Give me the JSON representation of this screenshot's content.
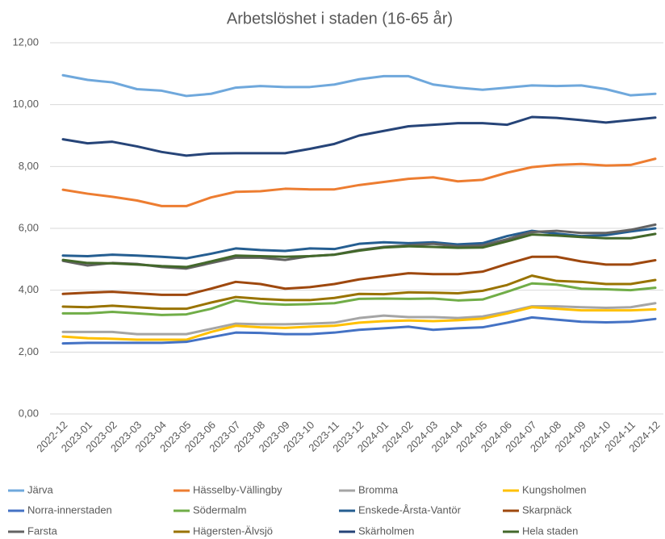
{
  "chart_data": {
    "type": "line",
    "title": "Arbetslöshet i staden (16-65 år)",
    "categories": [
      "2022-12",
      "2023-01",
      "2023-02",
      "2023-03",
      "2023-04",
      "2023-05",
      "2023-06",
      "2023-07",
      "2023-08",
      "2023-09",
      "2023-10",
      "2023-11",
      "2023-12",
      "2024-01",
      "2024-02",
      "2024-03",
      "2024-04",
      "2024-05",
      "2024-06",
      "2024-07",
      "2024-08",
      "2024-09",
      "2024-10",
      "2024-11",
      "2024-12"
    ],
    "ylim": [
      0,
      12
    ],
    "yticks": [
      {
        "value": 0,
        "label": "0,00"
      },
      {
        "value": 2,
        "label": "2,00"
      },
      {
        "value": 4,
        "label": "4,00"
      },
      {
        "value": 6,
        "label": "6,00"
      },
      {
        "value": 8,
        "label": "8,00"
      },
      {
        "value": 10,
        "label": "10,00"
      },
      {
        "value": 12,
        "label": "12,00"
      }
    ],
    "grid": true,
    "legend": "bottom",
    "series": [
      {
        "name": "Järva",
        "color": "#6fa8dc",
        "values": [
          10.95,
          10.8,
          10.72,
          10.5,
          10.45,
          10.28,
          10.35,
          10.55,
          10.6,
          10.57,
          10.57,
          10.65,
          10.82,
          10.92,
          10.92,
          10.65,
          10.55,
          10.48,
          10.55,
          10.62,
          10.6,
          10.62,
          10.5,
          10.3,
          10.35
        ]
      },
      {
        "name": "Hässelby-Vällingby",
        "color": "#ed7d31",
        "values": [
          7.25,
          7.12,
          7.02,
          6.9,
          6.72,
          6.72,
          7.0,
          7.18,
          7.2,
          7.28,
          7.26,
          7.26,
          7.4,
          7.5,
          7.6,
          7.65,
          7.52,
          7.57,
          7.8,
          7.98,
          8.05,
          8.08,
          8.03,
          8.05,
          8.25
        ]
      },
      {
        "name": "Bromma",
        "color": "#a5a5a5",
        "values": [
          2.65,
          2.65,
          2.65,
          2.58,
          2.58,
          2.58,
          2.75,
          2.92,
          2.9,
          2.9,
          2.92,
          2.95,
          3.1,
          3.18,
          3.13,
          3.13,
          3.1,
          3.15,
          3.3,
          3.48,
          3.48,
          3.45,
          3.43,
          3.45,
          3.58
        ]
      },
      {
        "name": "Kungsholmen",
        "color": "#ffc000",
        "values": [
          2.5,
          2.45,
          2.43,
          2.4,
          2.4,
          2.4,
          2.65,
          2.85,
          2.8,
          2.78,
          2.82,
          2.85,
          2.95,
          3.0,
          3.02,
          3.0,
          3.03,
          3.08,
          3.25,
          3.45,
          3.4,
          3.35,
          3.35,
          3.35,
          3.38
        ]
      },
      {
        "name": "Norra-innerstaden",
        "color": "#4472c4",
        "values": [
          2.28,
          2.3,
          2.3,
          2.3,
          2.3,
          2.33,
          2.48,
          2.63,
          2.62,
          2.58,
          2.58,
          2.63,
          2.72,
          2.77,
          2.82,
          2.72,
          2.77,
          2.8,
          2.95,
          3.12,
          3.05,
          2.98,
          2.96,
          2.98,
          3.07
        ]
      },
      {
        "name": "Södermalm",
        "color": "#70ad47",
        "values": [
          3.25,
          3.25,
          3.3,
          3.25,
          3.2,
          3.22,
          3.4,
          3.67,
          3.57,
          3.53,
          3.55,
          3.58,
          3.72,
          3.73,
          3.72,
          3.73,
          3.67,
          3.7,
          3.95,
          4.22,
          4.18,
          4.05,
          4.03,
          4.0,
          4.08
        ]
      },
      {
        "name": "Enskede-Årsta-Vantör",
        "color": "#255e91",
        "values": [
          5.12,
          5.1,
          5.15,
          5.12,
          5.08,
          5.03,
          5.18,
          5.35,
          5.3,
          5.27,
          5.35,
          5.33,
          5.5,
          5.55,
          5.52,
          5.55,
          5.48,
          5.52,
          5.75,
          5.92,
          5.83,
          5.75,
          5.78,
          5.9,
          6.0
        ]
      },
      {
        "name": "Skarpnäck",
        "color": "#9e480e",
        "values": [
          3.88,
          3.92,
          3.95,
          3.9,
          3.85,
          3.85,
          4.05,
          4.27,
          4.2,
          4.05,
          4.1,
          4.2,
          4.35,
          4.45,
          4.55,
          4.52,
          4.52,
          4.6,
          4.85,
          5.08,
          5.08,
          4.93,
          4.83,
          4.83,
          4.97
        ]
      },
      {
        "name": "Farsta",
        "color": "#636363",
        "values": [
          4.95,
          4.8,
          4.88,
          4.85,
          4.75,
          4.7,
          4.88,
          5.05,
          5.05,
          4.98,
          5.1,
          5.15,
          5.3,
          5.4,
          5.45,
          5.5,
          5.42,
          5.45,
          5.65,
          5.88,
          5.92,
          5.85,
          5.85,
          5.95,
          6.12
        ]
      },
      {
        "name": "Hägersten-Älvsjö",
        "color": "#997300",
        "values": [
          3.47,
          3.45,
          3.5,
          3.45,
          3.4,
          3.4,
          3.6,
          3.78,
          3.72,
          3.68,
          3.68,
          3.75,
          3.88,
          3.87,
          3.93,
          3.92,
          3.9,
          3.98,
          4.17,
          4.47,
          4.3,
          4.27,
          4.2,
          4.2,
          4.33
        ]
      },
      {
        "name": "Skärholmen",
        "color": "#264478",
        "values": [
          8.88,
          8.75,
          8.8,
          8.65,
          8.47,
          8.35,
          8.42,
          8.43,
          8.43,
          8.43,
          8.57,
          8.73,
          9.0,
          9.15,
          9.3,
          9.35,
          9.4,
          9.4,
          9.35,
          9.6,
          9.57,
          9.5,
          9.42,
          9.5,
          9.58
        ]
      },
      {
        "name": "Hela staden",
        "color": "#43682b",
        "values": [
          4.98,
          4.88,
          4.87,
          4.83,
          4.78,
          4.75,
          4.93,
          5.12,
          5.1,
          5.08,
          5.1,
          5.15,
          5.28,
          5.38,
          5.42,
          5.4,
          5.37,
          5.38,
          5.58,
          5.8,
          5.77,
          5.72,
          5.68,
          5.68,
          5.82
        ]
      }
    ]
  }
}
